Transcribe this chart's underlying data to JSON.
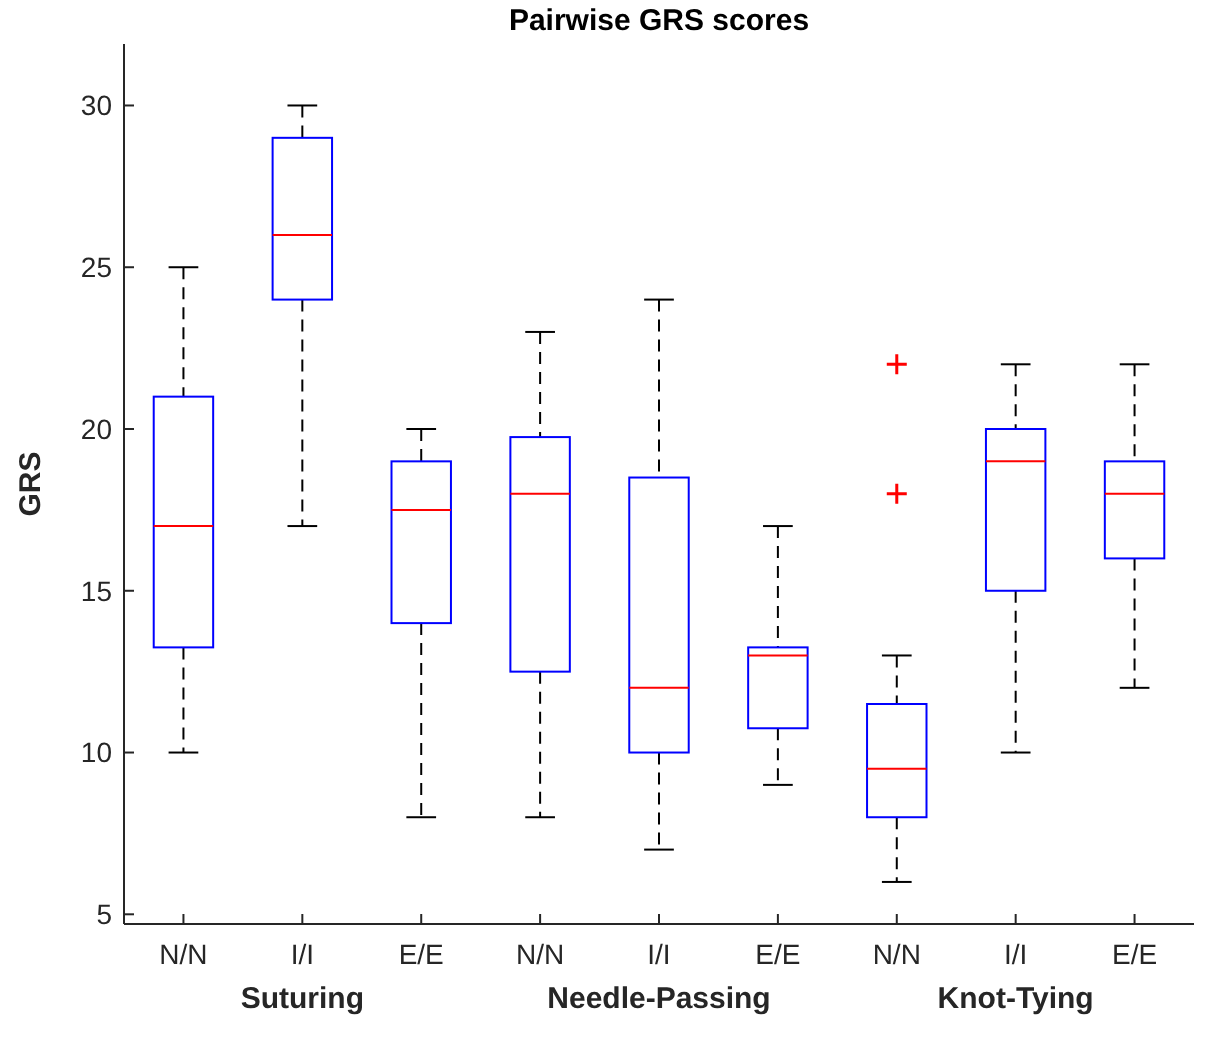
{
  "chart_data": {
    "type": "box",
    "title": "Pairwise GRS scores",
    "ylabel": "GRS",
    "categories": [
      "N/N",
      "I/I",
      "E/E",
      "N/N",
      "I/I",
      "E/E",
      "N/N",
      "I/I",
      "E/E"
    ],
    "ylim": [
      4.7,
      31.9
    ],
    "yticks": [
      5,
      10,
      15,
      20,
      25,
      30
    ],
    "grid": false,
    "annotations": [
      "Suturing",
      "Needle-Passing",
      "Knot-Tying"
    ],
    "series": [
      {
        "color": "#0000ff",
        "boxes": [
          {
            "low": 10,
            "q1": 13.25,
            "median": 17,
            "q3": 21,
            "high": 25
          },
          {
            "low": 17,
            "q1": 24,
            "median": 26,
            "q3": 29,
            "high": 30
          },
          {
            "low": 8,
            "q1": 14,
            "median": 17.5,
            "q3": 19,
            "high": 20
          },
          {
            "low": 8,
            "q1": 12.5,
            "median": 18,
            "q3": 19.75,
            "high": 23
          },
          {
            "low": 7,
            "q1": 10,
            "median": 12,
            "q3": 18.5,
            "high": 24
          },
          {
            "low": 9,
            "q1": 10.75,
            "median": 13,
            "q3": 13.25,
            "high": 17
          },
          {
            "low": 6,
            "q1": 8,
            "median": 9.5,
            "q3": 11.5,
            "high": 13,
            "outliers": [
              22,
              18
            ]
          },
          {
            "low": 10,
            "q1": 15,
            "median": 19,
            "q3": 20,
            "high": 22
          },
          {
            "low": 12,
            "q1": 16,
            "median": 18,
            "q3": 19,
            "high": 22
          }
        ]
      }
    ]
  }
}
